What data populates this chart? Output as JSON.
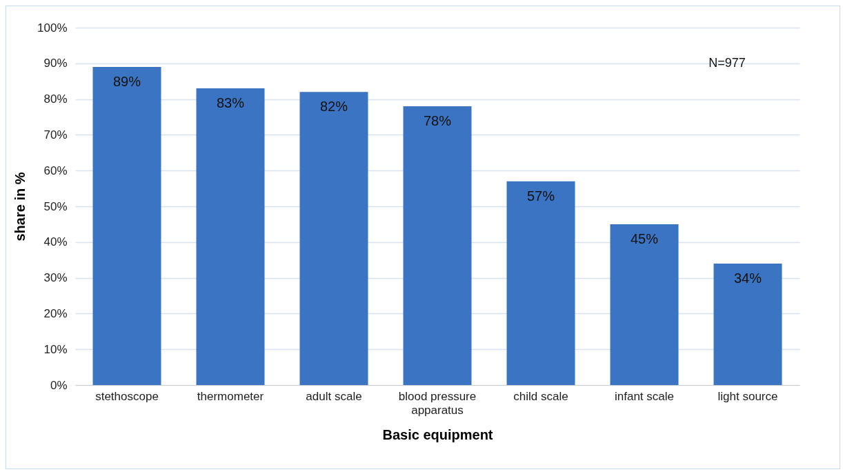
{
  "chart_data": {
    "type": "bar",
    "xlabel": "Basic equipment",
    "ylabel": "share in %",
    "categories": [
      "stethoscope",
      "thermometer",
      "adult scale",
      "blood pressure apparatus",
      "child scale",
      "infant scale",
      "light source"
    ],
    "values": [
      89,
      83,
      82,
      78,
      57,
      45,
      34
    ],
    "value_labels": [
      "89%",
      "83%",
      "82%",
      "78%",
      "57%",
      "45%",
      "34%"
    ],
    "color": "#3a74c2",
    "ylim": [
      0,
      100
    ],
    "yticks": [
      {
        "value": 0,
        "label": "0%"
      },
      {
        "value": 10,
        "label": "10%"
      },
      {
        "value": 20,
        "label": "20%"
      },
      {
        "value": 30,
        "label": "30%"
      },
      {
        "value": 40,
        "label": "40%"
      },
      {
        "value": 50,
        "label": "50%"
      },
      {
        "value": 60,
        "label": "60%"
      },
      {
        "value": 70,
        "label": "70%"
      },
      {
        "value": 80,
        "label": "80%"
      },
      {
        "value": 90,
        "label": "90%"
      },
      {
        "value": 100,
        "label": "100%"
      }
    ],
    "grid": "y",
    "annotations": [
      "N=977"
    ]
  }
}
